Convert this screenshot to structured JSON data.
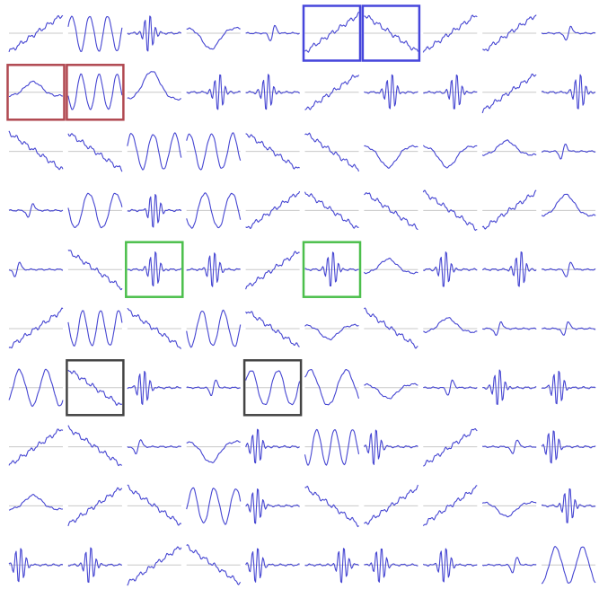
{
  "figure": {
    "rows": 10,
    "cols": 10,
    "colors": {
      "curve": "#4646d2",
      "baseline": "#c8c8c8",
      "box_blue": "#4646dc",
      "box_red": "#b04850",
      "box_green": "#4cbf4c",
      "box_black": "#444444"
    },
    "cells": [
      [
        [
          "ramp",
          1
        ],
        [
          "osc",
          3
        ],
        [
          "burst",
          0.4
        ],
        [
          "hump",
          -1.5
        ],
        [
          "pulse",
          0.5
        ],
        [
          "ramp",
          1
        ],
        [
          "ramp",
          -1
        ],
        [
          "ramp",
          1
        ],
        [
          "ramp",
          1
        ],
        [
          "pulse",
          0.5
        ]
      ],
      [
        [
          "hump",
          1
        ],
        [
          "osc",
          3
        ],
        [
          "hump",
          2
        ],
        [
          "burst",
          0.6
        ],
        [
          "burst",
          0.4
        ],
        [
          "ramp",
          1
        ],
        [
          "burst",
          0.5
        ],
        [
          "burst",
          0.6
        ],
        [
          "ramp",
          1
        ],
        [
          "burst",
          0.7
        ]
      ],
      [
        [
          "ramp",
          -1
        ],
        [
          "ramp",
          -1
        ],
        [
          "osc",
          2.5
        ],
        [
          "osc",
          2.5
        ],
        [
          "ramp",
          -1
        ],
        [
          "ramp",
          -1
        ],
        [
          "hump",
          -1.5
        ],
        [
          "hump",
          -1.5
        ],
        [
          "hump",
          1
        ],
        [
          "pulse",
          0.4
        ]
      ],
      [
        [
          "pulse",
          0.4
        ],
        [
          "osc",
          2
        ],
        [
          "burst",
          0.5
        ],
        [
          "osc",
          2
        ],
        [
          "ramp",
          1
        ],
        [
          "ramp",
          -1
        ],
        [
          "ramp",
          -1
        ],
        [
          "ramp",
          -1
        ],
        [
          "ramp",
          1
        ],
        [
          "hump",
          1.5
        ]
      ],
      [
        [
          "pulse",
          0.15
        ],
        [
          "ramp",
          -1
        ],
        [
          "burst",
          0.5
        ],
        [
          "burst",
          0.5
        ],
        [
          "ramp",
          1
        ],
        [
          "burst",
          0.5
        ],
        [
          "hump",
          1
        ],
        [
          "burst",
          0.4
        ],
        [
          "burst",
          0.7
        ],
        [
          "pulse",
          0.5
        ]
      ],
      [
        [
          "ramp",
          1
        ],
        [
          "osc",
          3
        ],
        [
          "ramp",
          -1
        ],
        [
          "osc",
          2.5
        ],
        [
          "ramp",
          -1
        ],
        [
          "hump",
          -1
        ],
        [
          "ramp",
          -1
        ],
        [
          "hump",
          1
        ],
        [
          "pulse",
          0.3
        ],
        [
          "pulse",
          0.45
        ]
      ],
      [
        [
          "osc",
          2
        ],
        [
          "ramp",
          -1
        ],
        [
          "burst",
          0.3
        ],
        [
          "pulse",
          0.5
        ],
        [
          "osc",
          2
        ],
        [
          "osc",
          1.5
        ],
        [
          "hump",
          -1
        ],
        [
          "pulse",
          0.5
        ],
        [
          "burst",
          0.3
        ],
        [
          "burst",
          0.3
        ]
      ],
      [
        [
          "ramp",
          1
        ],
        [
          "ramp",
          -1
        ],
        [
          "pulse",
          0.2
        ],
        [
          "hump",
          -1.5
        ],
        [
          "burst",
          0.2
        ],
        [
          "osc",
          3
        ],
        [
          "burst",
          0.2
        ],
        [
          "ramp",
          1
        ],
        [
          "pulse",
          0.6
        ],
        [
          "burst",
          0.2
        ]
      ],
      [
        [
          "hump",
          1
        ],
        [
          "ramp",
          1
        ],
        [
          "ramp",
          -1
        ],
        [
          "osc",
          2.5
        ],
        [
          "burst",
          0.2
        ],
        [
          "ramp",
          -1
        ],
        [
          "ramp",
          1
        ],
        [
          "ramp",
          1
        ],
        [
          "hump",
          -1
        ],
        [
          "burst",
          0.5
        ]
      ],
      [
        [
          "burst",
          0.2
        ],
        [
          "burst",
          0.4
        ],
        [
          "ramp",
          1
        ],
        [
          "ramp",
          -1
        ],
        [
          "burst",
          0.2
        ],
        [
          "burst",
          0.7
        ],
        [
          "burst",
          0.3
        ],
        [
          "burst",
          0.4
        ],
        [
          "pulse",
          0.6
        ],
        [
          "osc",
          2
        ]
      ]
    ],
    "highlights": [
      {
        "row": 0,
        "col": 5,
        "color": "box_blue"
      },
      {
        "row": 0,
        "col": 6,
        "color": "box_blue"
      },
      {
        "row": 1,
        "col": 0,
        "color": "box_red"
      },
      {
        "row": 1,
        "col": 1,
        "color": "box_red"
      },
      {
        "row": 4,
        "col": 2,
        "color": "box_green"
      },
      {
        "row": 4,
        "col": 5,
        "color": "box_green"
      },
      {
        "row": 6,
        "col": 1,
        "color": "box_black"
      },
      {
        "row": 6,
        "col": 4,
        "color": "box_black"
      }
    ]
  }
}
